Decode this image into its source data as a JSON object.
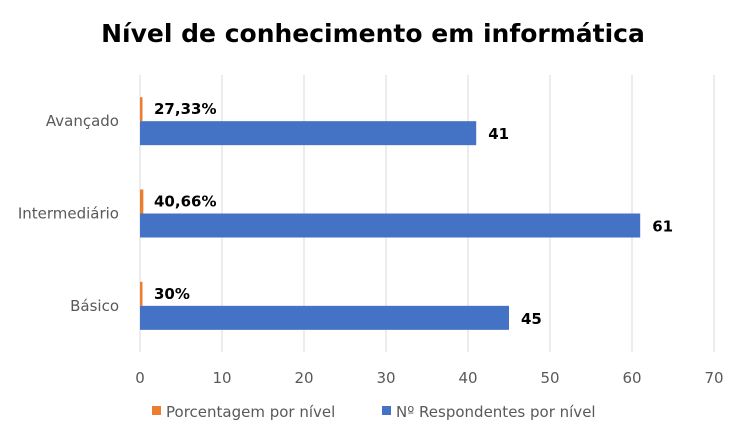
{
  "chart_data": {
    "type": "bar",
    "orientation": "horizontal",
    "title": "Nível de conhecimento em informática",
    "categories": [
      "Avançado",
      "Intermediário",
      "Básico"
    ],
    "series": [
      {
        "name": "Porcentagem por nível",
        "color": "#ed7d31",
        "values": [
          0.2733,
          0.4066,
          0.3
        ],
        "labels": [
          "27,33%",
          "40,66%",
          "30%"
        ]
      },
      {
        "name": "Nº Respondentes por nível",
        "color": "#4472c4",
        "values": [
          41,
          61,
          45
        ],
        "labels": [
          "41",
          "61",
          "45"
        ]
      }
    ],
    "x_ticks": [
      "0",
      "10",
      "20",
      "30",
      "40",
      "50",
      "60",
      "70"
    ],
    "xlim": [
      0,
      70
    ],
    "grid": true,
    "legend": "bottom"
  }
}
